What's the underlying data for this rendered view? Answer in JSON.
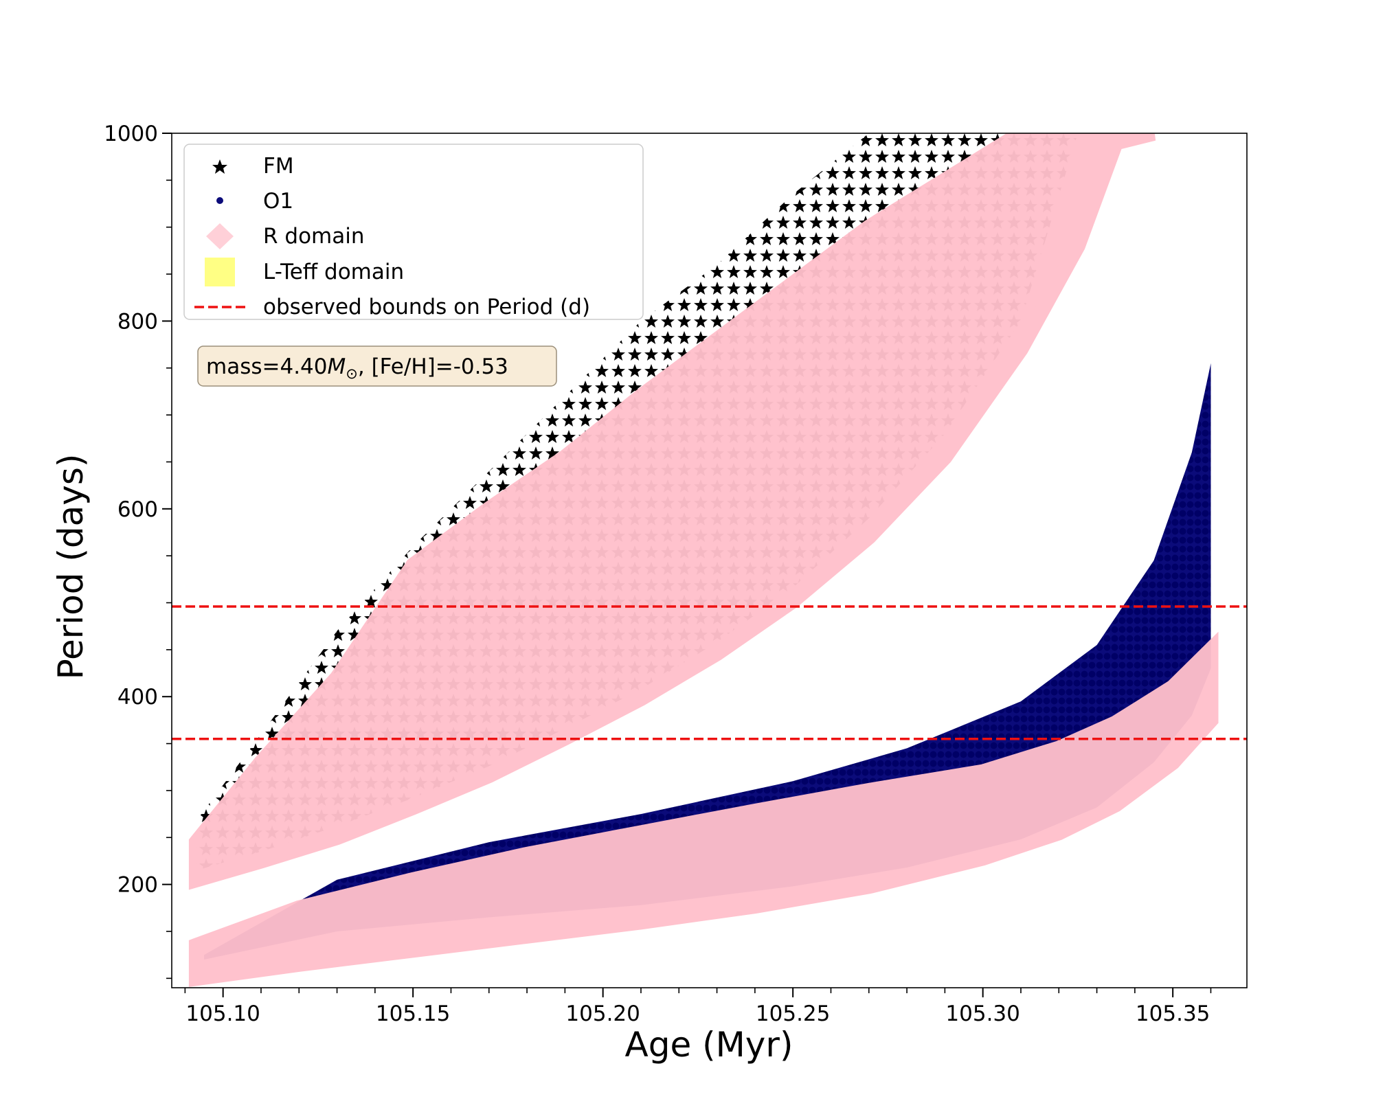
{
  "chart_data": {
    "type": "scatter",
    "xlabel": "Age (Myr)",
    "ylabel": "Period (days)",
    "xlim": [
      105.0865,
      105.3695
    ],
    "ylim": [
      90,
      1000
    ],
    "xticks": [
      105.1,
      105.15,
      105.2,
      105.25,
      105.3,
      105.35
    ],
    "xtick_labels": [
      "105.10",
      "105.15",
      "105.20",
      "105.25",
      "105.30",
      "105.35"
    ],
    "yticks": [
      200,
      400,
      600,
      800,
      1000
    ],
    "ytick_labels": [
      "200",
      "400",
      "600",
      "800",
      "1000"
    ],
    "legend_position": "upper-left",
    "annotation": {
      "prefix": "mass=4.40",
      "symbol": "M",
      "subscript": "⊙",
      "suffix": ", [Fe/H]=-0.53"
    },
    "observed_bounds": {
      "name": "observed bounds on Period (d)",
      "color": "#ee1111",
      "values": [
        355,
        496
      ]
    },
    "series": [
      {
        "name": "FM",
        "marker": "star",
        "color": "#000000",
        "band": {
          "x": [
            105.093,
            105.11,
            105.13,
            105.15,
            105.17,
            105.19,
            105.21,
            105.23,
            105.25,
            105.27,
            105.29,
            105.31,
            105.325
          ],
          "lower": [
            215,
            235,
            262,
            292,
            326,
            366,
            408,
            458,
            516,
            590,
            680,
            800,
            1000
          ],
          "upper": [
            268,
            360,
            470,
            560,
            640,
            720,
            800,
            860,
            935,
            1000,
            1000,
            1000,
            1000
          ]
        }
      },
      {
        "name": "O1",
        "marker": "circle",
        "color": "#0b0b7a",
        "band": {
          "x": [
            105.095,
            105.13,
            105.17,
            105.21,
            105.25,
            105.28,
            105.31,
            105.33,
            105.345,
            105.355,
            105.36
          ],
          "lower": [
            120,
            150,
            165,
            178,
            198,
            218,
            248,
            282,
            330,
            380,
            430
          ],
          "upper": [
            125,
            205,
            245,
            275,
            310,
            345,
            395,
            455,
            545,
            660,
            755
          ]
        }
      },
      {
        "name": "R domain",
        "marker": "diamond",
        "color": "#ffc0cb",
        "bands": [
          {
            "x": [
              105.093,
              105.11,
              105.13,
              105.15,
              105.17,
              105.19,
              105.21,
              105.23,
              105.25,
              105.27,
              105.29,
              105.31,
              105.325,
              105.335,
              105.345
            ],
            "lower": [
              205,
              225,
              250,
              282,
              316,
              356,
              398,
              446,
              502,
              570,
              655,
              770,
              880,
              990,
              1000
            ],
            "upper": [
              245,
              330,
              420,
              540,
              600,
              655,
              720,
              780,
              840,
              900,
              950,
              1000,
              1000,
              1000,
              1000
            ]
          },
          {
            "x": [
              105.093,
              105.12,
              105.15,
              105.18,
              105.21,
              105.24,
              105.27,
              105.3,
              105.32,
              105.335,
              105.35,
              105.36
            ],
            "lower": [
              100,
              115,
              130,
              145,
              160,
              177,
              198,
              228,
              255,
              285,
              330,
              375
            ],
            "upper": [
              135,
              175,
              205,
              232,
              255,
              278,
              300,
              320,
              345,
              372,
              410,
              450
            ]
          }
        ]
      },
      {
        "name": "L-Teff domain",
        "marker": "square",
        "color": "#ffff77",
        "points": []
      }
    ]
  }
}
